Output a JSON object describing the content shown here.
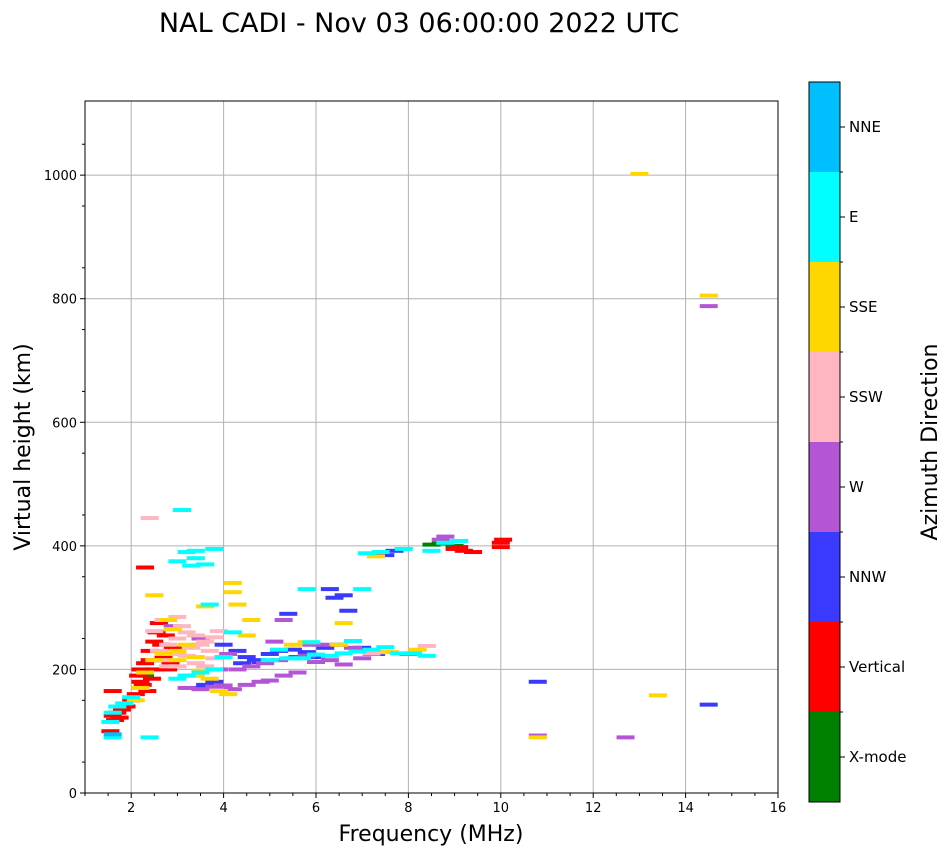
{
  "chart_data": {
    "type": "scatter",
    "title": "NAL CADI - Nov 03 06:00:00 2022 UTC",
    "xlabel": "Frequency (MHz)",
    "ylabel": "Virtual height (km)",
    "xlim": [
      1,
      16
    ],
    "ylim": [
      0,
      1120
    ],
    "xticks": [
      2,
      4,
      6,
      8,
      10,
      12,
      14,
      16
    ],
    "yticks": [
      0,
      200,
      400,
      600,
      800,
      1000
    ],
    "grid": true,
    "colorbar": {
      "title": "Azimuth Direction",
      "categories": [
        {
          "label": "X-mode",
          "color": "#008000"
        },
        {
          "label": "Vertical",
          "color": "#ff0000"
        },
        {
          "label": "NNW",
          "color": "#3a3aff"
        },
        {
          "label": "W",
          "color": "#b455d6"
        },
        {
          "label": "SSW",
          "color": "#ffb6c1"
        },
        {
          "label": "SSE",
          "color": "#ffd700"
        },
        {
          "label": "E",
          "color": "#00ffff"
        },
        {
          "label": "NNE",
          "color": "#00bfff"
        }
      ]
    },
    "series": [
      {
        "name": "X-mode",
        "points": [
          [
            8.5,
            402
          ],
          [
            8.7,
            404
          ],
          [
            9.0,
            400
          ],
          [
            2.6,
            215
          ],
          [
            2.3,
            190
          ]
        ]
      },
      {
        "name": "Vertical",
        "points": [
          [
            1.6,
            125
          ],
          [
            1.7,
            130
          ],
          [
            1.65,
            118
          ],
          [
            1.8,
            135
          ],
          [
            1.75,
            122
          ],
          [
            1.9,
            140
          ],
          [
            2.0,
            150
          ],
          [
            2.1,
            160
          ],
          [
            2.15,
            190
          ],
          [
            2.2,
            200
          ],
          [
            2.3,
            210
          ],
          [
            2.25,
            175
          ],
          [
            2.4,
            230
          ],
          [
            2.5,
            245
          ],
          [
            2.55,
            260
          ],
          [
            2.6,
            275
          ],
          [
            2.7,
            220
          ],
          [
            2.45,
            185
          ],
          [
            2.35,
            165
          ],
          [
            2.65,
            240
          ],
          [
            2.75,
            255
          ],
          [
            2.8,
            200
          ],
          [
            2.9,
            235
          ],
          [
            2.5,
            200
          ],
          [
            2.3,
            365
          ],
          [
            1.6,
            165
          ],
          [
            1.55,
            100
          ],
          [
            2.85,
            210
          ],
          [
            2.4,
            215
          ],
          [
            2.2,
            180
          ],
          [
            9.0,
            395
          ],
          [
            9.2,
            392
          ],
          [
            9.4,
            390
          ],
          [
            9.1,
            398
          ],
          [
            10.0,
            405
          ],
          [
            10.0,
            398
          ],
          [
            10.05,
            410
          ]
        ]
      },
      {
        "name": "NNW",
        "points": [
          [
            4.0,
            240
          ],
          [
            4.3,
            230
          ],
          [
            4.5,
            220
          ],
          [
            4.7,
            215
          ],
          [
            5.0,
            225
          ],
          [
            5.2,
            230
          ],
          [
            5.5,
            232
          ],
          [
            5.8,
            228
          ],
          [
            6.2,
            235
          ],
          [
            6.5,
            240
          ],
          [
            4.4,
            210
          ],
          [
            4.8,
            212
          ],
          [
            5.6,
            220
          ],
          [
            6.0,
            220
          ],
          [
            7.0,
            235
          ],
          [
            7.3,
            225
          ],
          [
            3.6,
            175
          ],
          [
            3.8,
            180
          ],
          [
            6.6,
            320
          ],
          [
            6.4,
            316
          ],
          [
            6.7,
            295
          ],
          [
            5.4,
            290
          ],
          [
            7.5,
            385
          ],
          [
            7.7,
            392
          ],
          [
            10.8,
            180
          ],
          [
            14.5,
            143
          ],
          [
            6.3,
            330
          ],
          [
            3.5,
            170
          ]
        ]
      },
      {
        "name": "W",
        "points": [
          [
            3.2,
            170
          ],
          [
            3.5,
            168
          ],
          [
            3.8,
            172
          ],
          [
            4.0,
            174
          ],
          [
            4.2,
            168
          ],
          [
            4.5,
            175
          ],
          [
            4.8,
            180
          ],
          [
            5.0,
            182
          ],
          [
            5.3,
            190
          ],
          [
            5.6,
            195
          ],
          [
            4.3,
            200
          ],
          [
            4.6,
            205
          ],
          [
            4.9,
            210
          ],
          [
            5.2,
            215
          ],
          [
            5.5,
            218
          ],
          [
            5.8,
            222
          ],
          [
            6.0,
            212
          ],
          [
            6.3,
            215
          ],
          [
            6.6,
            208
          ],
          [
            7.0,
            218
          ],
          [
            7.2,
            225
          ],
          [
            4.1,
            225
          ],
          [
            5.9,
            240
          ],
          [
            3.9,
            200
          ],
          [
            3.3,
            190
          ],
          [
            5.1,
            245
          ],
          [
            5.3,
            280
          ],
          [
            6.1,
            240
          ],
          [
            6.8,
            235
          ],
          [
            8.0,
            225
          ],
          [
            8.8,
            415
          ],
          [
            8.7,
            410
          ],
          [
            2.9,
            270
          ],
          [
            3.5,
            250
          ],
          [
            10.8,
            93
          ],
          [
            12.7,
            90
          ],
          [
            14.5,
            788
          ]
        ]
      },
      {
        "name": "SSW",
        "points": [
          [
            2.6,
            230
          ],
          [
            2.8,
            240
          ],
          [
            3.0,
            250
          ],
          [
            3.2,
            260
          ],
          [
            3.4,
            255
          ],
          [
            3.6,
            245
          ],
          [
            3.8,
            252
          ],
          [
            2.9,
            265
          ],
          [
            3.1,
            270
          ],
          [
            3.3,
            235
          ],
          [
            3.5,
            240
          ],
          [
            3.7,
            230
          ],
          [
            2.7,
            215
          ],
          [
            2.8,
            205
          ],
          [
            3.0,
            225
          ],
          [
            3.2,
            222
          ],
          [
            3.4,
            210
          ],
          [
            3.6,
            205
          ],
          [
            3.8,
            218
          ],
          [
            2.7,
            280
          ],
          [
            3.0,
            285
          ],
          [
            2.5,
            262
          ],
          [
            3.9,
            262
          ],
          [
            7.2,
            226
          ],
          [
            7.5,
            228
          ],
          [
            8.4,
            238
          ],
          [
            2.4,
            445
          ],
          [
            3.0,
            205
          ]
        ]
      },
      {
        "name": "SSE",
        "points": [
          [
            2.3,
            195
          ],
          [
            2.2,
            170
          ],
          [
            2.1,
            150
          ],
          [
            2.5,
            215
          ],
          [
            2.7,
            225
          ],
          [
            3.0,
            230
          ],
          [
            3.2,
            240
          ],
          [
            3.4,
            220
          ],
          [
            3.5,
            198
          ],
          [
            3.7,
            185
          ],
          [
            3.9,
            165
          ],
          [
            4.1,
            160
          ],
          [
            3.0,
            215
          ],
          [
            2.8,
            280
          ],
          [
            2.9,
            265
          ],
          [
            3.6,
            302
          ],
          [
            4.2,
            325
          ],
          [
            4.3,
            305
          ],
          [
            4.2,
            340
          ],
          [
            4.5,
            255
          ],
          [
            5.5,
            240
          ],
          [
            5.8,
            244
          ],
          [
            6.5,
            240
          ],
          [
            6.6,
            275
          ],
          [
            7.3,
            383
          ],
          [
            7.6,
            228
          ],
          [
            8.2,
            232
          ],
          [
            10.8,
            90
          ],
          [
            13.4,
            158
          ],
          [
            14.5,
            805
          ],
          [
            13.0,
            1002
          ],
          [
            2.5,
            320
          ],
          [
            4.6,
            280
          ],
          [
            3.4,
            190
          ]
        ]
      },
      {
        "name": "E",
        "points": [
          [
            1.6,
            130
          ],
          [
            1.7,
            140
          ],
          [
            1.55,
            115
          ],
          [
            1.6,
            90
          ],
          [
            1.85,
            145
          ],
          [
            2.0,
            155
          ],
          [
            2.4,
            90
          ],
          [
            3.0,
            375
          ],
          [
            3.2,
            390
          ],
          [
            3.4,
            392
          ],
          [
            3.6,
            370
          ],
          [
            3.8,
            395
          ],
          [
            3.4,
            380
          ],
          [
            3.3,
            368
          ],
          [
            3.1,
            458
          ],
          [
            3.2,
            190
          ],
          [
            3.5,
            195
          ],
          [
            3.8,
            200
          ],
          [
            3.0,
            185
          ],
          [
            4.0,
            220
          ],
          [
            4.2,
            260
          ],
          [
            3.7,
            305
          ],
          [
            5.0,
            215
          ],
          [
            5.4,
            218
          ],
          [
            5.7,
            218
          ],
          [
            6.0,
            224
          ],
          [
            6.3,
            222
          ],
          [
            6.6,
            226
          ],
          [
            6.9,
            229
          ],
          [
            7.2,
            232
          ],
          [
            7.5,
            236
          ],
          [
            7.8,
            226
          ],
          [
            8.1,
            226
          ],
          [
            8.4,
            222
          ],
          [
            5.2,
            232
          ],
          [
            5.9,
            244
          ],
          [
            6.8,
            246
          ],
          [
            7.1,
            388
          ],
          [
            7.4,
            390
          ],
          [
            7.9,
            395
          ],
          [
            8.5,
            392
          ],
          [
            8.8,
            405
          ],
          [
            9.1,
            408
          ],
          [
            5.8,
            330
          ],
          [
            7.0,
            330
          ]
        ]
      },
      {
        "name": "NNE",
        "points": [
          [
            1.6,
            95
          ]
        ]
      }
    ]
  }
}
